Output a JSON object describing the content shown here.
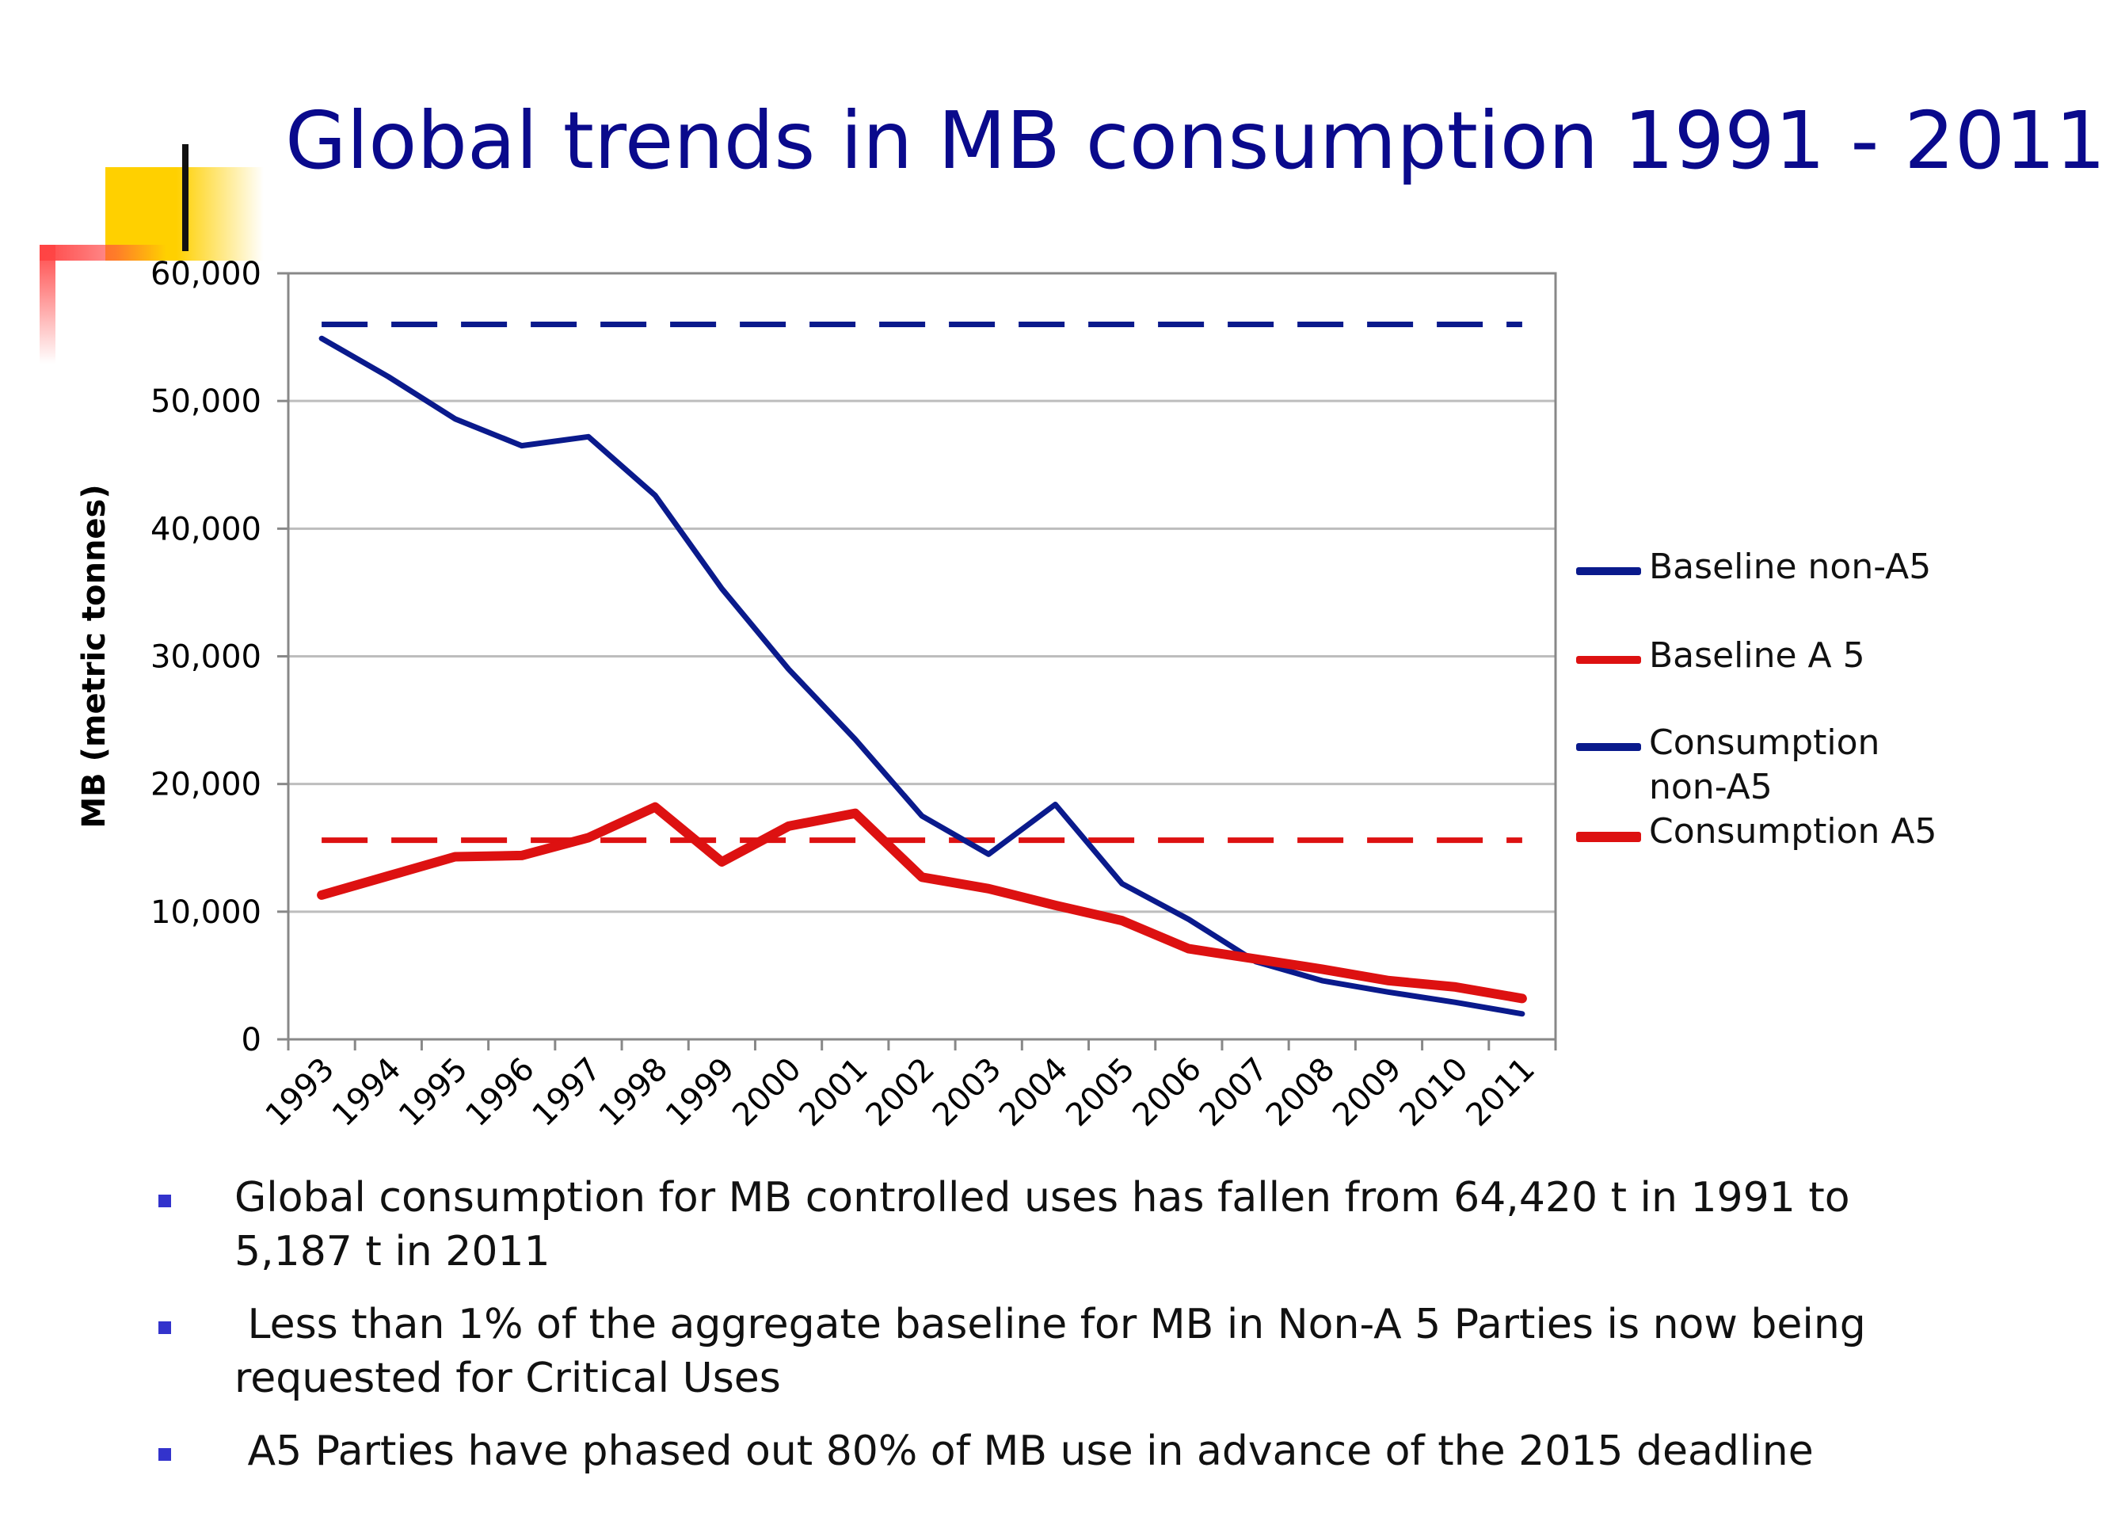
{
  "slide": {
    "title": "Global trends in MB consumption 1991 - 2011",
    "accent_colors": {
      "yellow": "#ffd000",
      "red": "#ff4444",
      "title": "#0a0a8c"
    }
  },
  "chart_data": {
    "type": "line",
    "title": "",
    "xlabel": "",
    "ylabel": "MB (metric tonnes)",
    "ylim": [
      0,
      60000
    ],
    "yticks": [
      0,
      10000,
      20000,
      30000,
      40000,
      50000,
      60000
    ],
    "ytick_labels": [
      "0",
      "10,000",
      "20,000",
      "30,000",
      "40,000",
      "50,000",
      "60,000"
    ],
    "categories": [
      "1993",
      "1994",
      "1995",
      "1996",
      "1997",
      "1998",
      "1999",
      "2000",
      "2001",
      "2002",
      "2003",
      "2004",
      "2005",
      "2006",
      "2007",
      "2008",
      "2009",
      "2010",
      "2011"
    ],
    "grid": true,
    "legend_position": "right",
    "series": [
      {
        "name": "Baseline non-A5",
        "color": "#0a1a8c",
        "style": "dashed",
        "width": 7,
        "values": [
          56000,
          56000,
          56000,
          56000,
          56000,
          56000,
          56000,
          56000,
          56000,
          56000,
          56000,
          56000,
          56000,
          56000,
          56000,
          56000,
          56000,
          56000,
          56000
        ]
      },
      {
        "name": "Baseline A 5",
        "color": "#dd1111",
        "style": "dashed",
        "width": 7,
        "values": [
          15600,
          15600,
          15600,
          15600,
          15600,
          15600,
          15600,
          15600,
          15600,
          15600,
          15600,
          15600,
          15600,
          15600,
          15600,
          15600,
          15600,
          15600,
          15600
        ]
      },
      {
        "name": "Consumption non-A5",
        "color": "#0a1a8c",
        "style": "solid",
        "width": 7,
        "values": [
          54900,
          51900,
          48600,
          46500,
          47200,
          42600,
          35300,
          29000,
          23500,
          17500,
          14500,
          18400,
          12200,
          9400,
          6100,
          4600,
          3700,
          2900,
          2000
        ]
      },
      {
        "name": "Consumption A5",
        "color": "#dd1111",
        "style": "solid",
        "width": 12,
        "values": [
          11300,
          12800,
          14300,
          14400,
          15800,
          18200,
          13900,
          16700,
          17700,
          12700,
          11800,
          10500,
          9300,
          7100,
          6300,
          5500,
          4600,
          4100,
          3200
        ]
      }
    ]
  },
  "legend": {
    "items": [
      {
        "label": "Baseline non-A5",
        "color": "#0a1a8c"
      },
      {
        "label": "Baseline A 5",
        "color": "#dd1111"
      },
      {
        "label": "Consumption non-A5",
        "color": "#0a1a8c"
      },
      {
        "label": "Consumption A5",
        "color": "#dd1111"
      }
    ]
  },
  "bullets": [
    "Global consumption for MB controlled uses has fallen from 64,420 t in 1991 to 5,187 t in 2011",
    " Less than 1% of the aggregate baseline for MB in Non-A 5 Parties is now being requested for Critical Uses",
    " A5 Parties have phased out 80% of MB use in advance of the 2015 deadline"
  ]
}
